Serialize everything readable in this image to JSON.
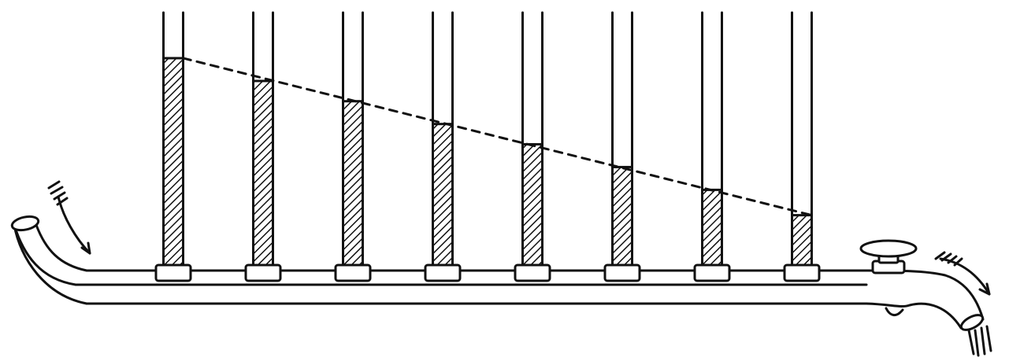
{
  "chart_data": {
    "type": "diagram",
    "tubes": [
      {
        "level": 0.82
      },
      {
        "level": 0.73
      },
      {
        "level": 0.65
      },
      {
        "level": 0.56
      },
      {
        "level": 0.48
      },
      {
        "level": 0.39
      },
      {
        "level": 0.3
      },
      {
        "level": 0.2
      }
    ]
  },
  "colors": {
    "ink": "#111111",
    "paper": "#ffffff"
  },
  "icons": {
    "inflow": "inflow-arrow-icon",
    "outflow": "outflow-arrow-icon",
    "tap": "tap-icon"
  }
}
